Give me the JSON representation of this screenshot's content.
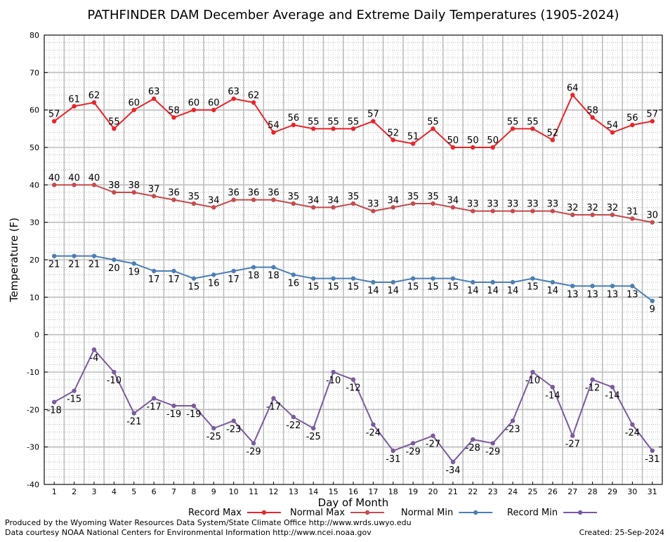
{
  "chart_data": {
    "type": "line",
    "title": "PATHFINDER DAM December Average and Extreme Daily Temperatures (1905-2024)",
    "xlabel": "Day of Month",
    "ylabel": "Temperature (F)",
    "xlim": [
      1,
      31
    ],
    "ylim": [
      -40,
      80
    ],
    "yticks": [
      -40,
      -30,
      -20,
      -10,
      0,
      10,
      20,
      30,
      40,
      50,
      60,
      70,
      80
    ],
    "x": [
      1,
      2,
      3,
      4,
      5,
      6,
      7,
      8,
      9,
      10,
      11,
      12,
      13,
      14,
      15,
      16,
      17,
      18,
      19,
      20,
      21,
      22,
      23,
      24,
      25,
      26,
      27,
      28,
      29,
      30,
      31
    ],
    "grid": true,
    "legend": "bottom",
    "series": [
      {
        "name": "Record Max",
        "color": "#e8252a",
        "label_pos": "above",
        "values": [
          57,
          61,
          62,
          55,
          60,
          63,
          58,
          60,
          60,
          63,
          62,
          54,
          56,
          55,
          55,
          55,
          57,
          52,
          51,
          55,
          50,
          50,
          50,
          55,
          55,
          52,
          64,
          58,
          54,
          56,
          57
        ]
      },
      {
        "name": "Normal Max",
        "color": "#c54b4b",
        "label_pos": "above",
        "values": [
          40,
          40,
          40,
          38,
          38,
          37,
          36,
          35,
          34,
          36,
          36,
          36,
          35,
          34,
          34,
          35,
          33,
          34,
          35,
          35,
          34,
          33,
          33,
          33,
          33,
          33,
          32,
          32,
          32,
          31,
          30
        ]
      },
      {
        "name": "Normal Min",
        "color": "#4a7fb5",
        "label_pos": "below",
        "values": [
          21,
          21,
          21,
          20,
          19,
          17,
          17,
          15,
          16,
          17,
          18,
          18,
          16,
          15,
          15,
          15,
          14,
          14,
          15,
          15,
          15,
          14,
          14,
          14,
          15,
          14,
          13,
          13,
          13,
          13,
          9
        ]
      },
      {
        "name": "Record Min",
        "color": "#7a5a9e",
        "label_pos": "below",
        "values": [
          -18,
          -15,
          -4,
          -10,
          -21,
          -17,
          -19,
          -19,
          -25,
          -23,
          -29,
          -17,
          -22,
          -25,
          -10,
          -12,
          -24,
          -31,
          -29,
          -27,
          -34,
          -28,
          -29,
          -23,
          -10,
          -14,
          -27,
          -12,
          -14,
          -24,
          -31
        ]
      }
    ]
  },
  "footer": {
    "produced_by": "Produced by the Wyoming Water Resources Data System/State Climate Office http://www.wrds.uwyo.edu",
    "data_courtesy": "Data courtesy NOAA National Centers for Environmental Information http://www.ncei.noaa.gov",
    "created": "Created:  25-Sep-2024"
  }
}
